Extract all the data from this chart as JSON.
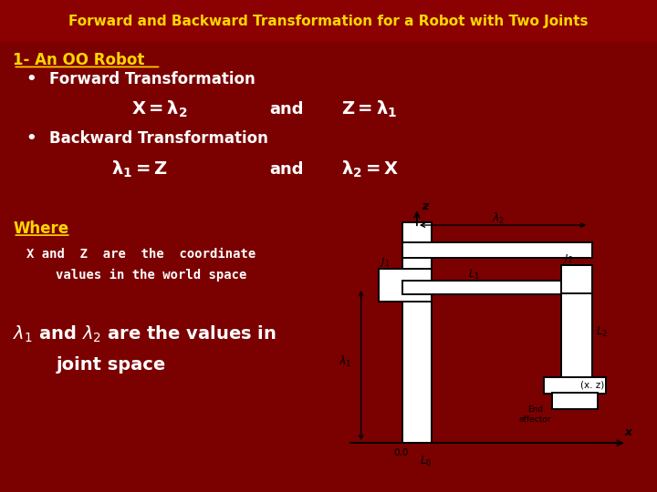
{
  "title": "Forward and Backward Transformation for a Robot with Two Joints",
  "title_color": "#FFD700",
  "bg_color": "#7B0000",
  "section_heading": "1- An OO Robot",
  "section_heading_color": "#FFD700",
  "bullet1_label": "Forward Transformation",
  "bullet2_label": "Backward Transformation",
  "where_label": "Where",
  "where_color": "#FFD700",
  "desc1": "X and  Z  are  the  coordinate",
  "desc2": "values in the world space",
  "lambda_line1": " are the values in",
  "lambda_line2": "joint space",
  "text_color": "#FFFFFF",
  "diagram_bg": "#C8C0A8"
}
